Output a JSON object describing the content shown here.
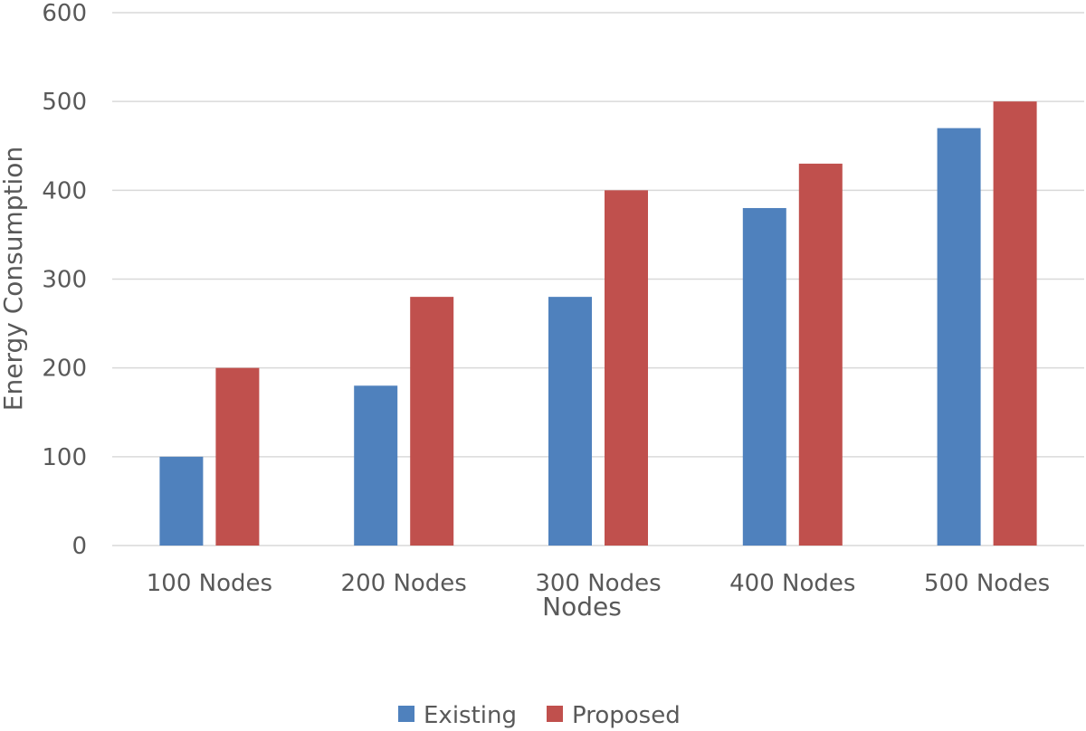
{
  "chart_data": {
    "type": "bar",
    "title": "",
    "xlabel": "Nodes",
    "ylabel": "Energy Consumption",
    "categories": [
      "100 Nodes",
      "200 Nodes",
      "300 Nodes",
      "400 Nodes",
      "500 Nodes"
    ],
    "series": [
      {
        "name": "Existing",
        "color": "#4f81bd",
        "values": [
          100,
          180,
          280,
          380,
          470
        ]
      },
      {
        "name": "Proposed",
        "color": "#c0504d",
        "values": [
          200,
          280,
          400,
          430,
          500
        ]
      }
    ],
    "ylim": [
      0,
      600
    ],
    "yticks": [
      0,
      100,
      200,
      300,
      400,
      500,
      600
    ],
    "grid": true,
    "legend_position": "bottom"
  }
}
